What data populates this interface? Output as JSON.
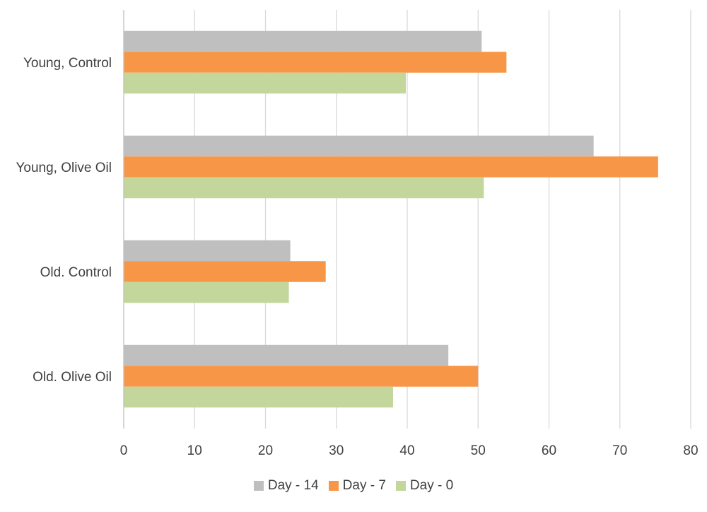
{
  "chart_data": {
    "type": "bar",
    "orientation": "horizontal",
    "categories": [
      "Young, Control",
      "Young, Olive Oil",
      "Old. Control",
      "Old. Olive Oil"
    ],
    "series": [
      {
        "name": "Day - 14",
        "color": "#bfbfbf",
        "values": [
          50.5,
          66.3,
          23.5,
          45.8
        ]
      },
      {
        "name": "Day - 7",
        "color": "#f79646",
        "values": [
          54.0,
          75.4,
          28.5,
          50.0
        ]
      },
      {
        "name": "Day - 0",
        "color": "#c3d69b",
        "values": [
          39.8,
          50.8,
          23.3,
          38.0
        ]
      }
    ],
    "xlim": [
      0,
      80
    ],
    "xticks": [
      "0",
      "10",
      "20",
      "30",
      "40",
      "50",
      "60",
      "70",
      "80"
    ],
    "grid": "vertical",
    "legend_position": "bottom",
    "title": "",
    "xlabel": "",
    "ylabel": ""
  }
}
